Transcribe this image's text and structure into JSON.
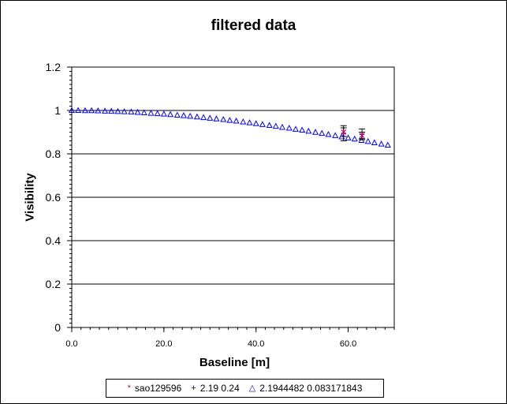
{
  "chart_data": {
    "type": "scatter",
    "title": "filtered data",
    "xlabel": "Baseline [m]",
    "ylabel": "Visibility",
    "xlim": [
      0,
      70
    ],
    "ylim": [
      0,
      1.2
    ],
    "x_ticks": [
      "0.0",
      "20.0",
      "40.0",
      "60.0"
    ],
    "y_ticks": [
      "0",
      "0.2",
      "0.4",
      "0.6",
      "0.8",
      "1",
      "1.2"
    ],
    "grid": "horizontal",
    "legend_position": "bottom",
    "series": [
      {
        "name": "sao129596",
        "marker": "star",
        "color": "#800080",
        "x": [
          59.0,
          63.0
        ],
        "y": [
          0.9,
          0.885
        ],
        "yerr": [
          0.02,
          0.015
        ]
      },
      {
        "name": "2.19 0.24",
        "marker": "plus",
        "color": "#000080",
        "x": [
          59.0,
          63.0
        ],
        "y": [
          0.895,
          0.89
        ],
        "yerr": [
          0.035,
          0.025
        ]
      },
      {
        "name": "2.1944482 0.083171843",
        "marker": "triangle",
        "color": "#0000ff",
        "x": [
          0,
          1.4,
          2.9,
          4.3,
          5.7,
          7.2,
          8.6,
          10.0,
          11.4,
          12.9,
          14.3,
          15.7,
          17.2,
          18.6,
          20.0,
          21.4,
          22.9,
          24.3,
          25.7,
          27.2,
          28.6,
          30.0,
          31.4,
          32.9,
          34.3,
          35.7,
          37.2,
          38.6,
          40.0,
          41.4,
          42.9,
          44.3,
          45.7,
          47.2,
          48.6,
          50.0,
          51.4,
          52.9,
          54.3,
          55.7,
          57.2,
          58.6,
          60.0,
          61.4,
          62.9,
          64.3,
          65.7,
          67.2,
          68.6
        ],
        "y": [
          1.0,
          1.0,
          0.999,
          0.999,
          0.998,
          0.997,
          0.996,
          0.995,
          0.994,
          0.993,
          0.991,
          0.989,
          0.987,
          0.985,
          0.983,
          0.981,
          0.978,
          0.976,
          0.973,
          0.97,
          0.967,
          0.964,
          0.961,
          0.958,
          0.954,
          0.951,
          0.947,
          0.943,
          0.939,
          0.935,
          0.931,
          0.927,
          0.922,
          0.918,
          0.913,
          0.909,
          0.904,
          0.899,
          0.894,
          0.889,
          0.884,
          0.878,
          0.873,
          0.868,
          0.862,
          0.857,
          0.851,
          0.845,
          0.84
        ]
      }
    ]
  }
}
